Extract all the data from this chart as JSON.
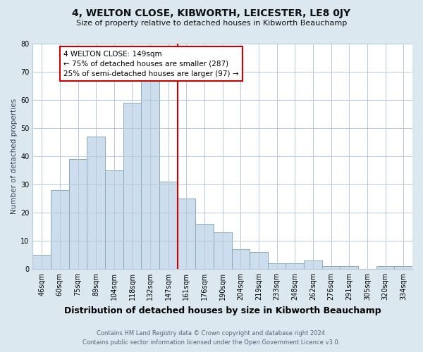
{
  "title1": "4, WELTON CLOSE, KIBWORTH, LEICESTER, LE8 0JY",
  "title2": "Size of property relative to detached houses in Kibworth Beauchamp",
  "xlabel": "Distribution of detached houses by size in Kibworth Beauchamp",
  "ylabel": "Number of detached properties",
  "footer1": "Contains HM Land Registry data © Crown copyright and database right 2024.",
  "footer2": "Contains public sector information licensed under the Open Government Licence v3.0.",
  "categories": [
    "46sqm",
    "60sqm",
    "75sqm",
    "89sqm",
    "104sqm",
    "118sqm",
    "132sqm",
    "147sqm",
    "161sqm",
    "176sqm",
    "190sqm",
    "204sqm",
    "219sqm",
    "233sqm",
    "248sqm",
    "262sqm",
    "276sqm",
    "291sqm",
    "305sqm",
    "320sqm",
    "334sqm"
  ],
  "values": [
    5,
    28,
    39,
    47,
    35,
    59,
    67,
    31,
    25,
    16,
    13,
    7,
    6,
    2,
    2,
    3,
    1,
    1,
    0,
    1,
    1
  ],
  "bar_color": "#ccdded",
  "bar_edge_color": "#8aaabb",
  "vline_x_idx": 7.5,
  "vline_color": "#cc0000",
  "annotation_text": "4 WELTON CLOSE: 149sqm\n← 75% of detached houses are smaller (287)\n25% of semi-detached houses are larger (97) →",
  "annotation_box_color": "#ffffff",
  "annotation_box_edge": "#cc0000",
  "ylim": [
    0,
    80
  ],
  "yticks": [
    0,
    10,
    20,
    30,
    40,
    50,
    60,
    70,
    80
  ],
  "background_color": "#dce8f0",
  "plot_bg_color": "#ffffff",
  "grid_color": "#b8c8d8",
  "title1_fontsize": 10,
  "title2_fontsize": 8,
  "ylabel_fontsize": 7.5,
  "xlabel_fontsize": 9,
  "tick_fontsize": 7,
  "footer_fontsize": 6,
  "annot_fontsize": 7.5
}
